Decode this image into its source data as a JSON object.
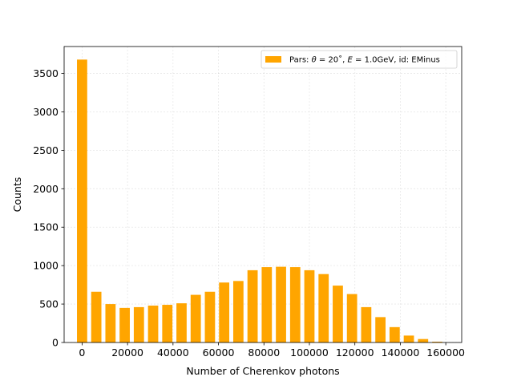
{
  "chart_data": {
    "type": "bar",
    "xlabel": "Number of Cherenkov photons",
    "ylabel": "Counts",
    "xlim": [
      -7900,
      167000
    ],
    "ylim": [
      0,
      3850
    ],
    "xticks": [
      0,
      20000,
      40000,
      60000,
      80000,
      100000,
      120000,
      140000,
      160000
    ],
    "xtick_labels": [
      "0",
      "20000",
      "40000",
      "60000",
      "80000",
      "100000",
      "120000",
      "140000",
      "160000"
    ],
    "yticks": [
      0,
      500,
      1000,
      1500,
      2000,
      2500,
      3000,
      3500
    ],
    "ytick_labels": [
      "0",
      "500",
      "1000",
      "1500",
      "2000",
      "2500",
      "3000",
      "3500"
    ],
    "grid": true,
    "legend_position": "top-right",
    "bin_width": 6250,
    "bar_width": 4500,
    "series": [
      {
        "name": "Pars: θ = 20˚, E = 1.0GeV, id: EMinus",
        "color": "#FFA500",
        "x": [
          0,
          6250,
          12500,
          18750,
          25000,
          31250,
          37500,
          43750,
          50000,
          56250,
          62500,
          68750,
          75000,
          81250,
          87500,
          93750,
          100000,
          106250,
          112500,
          118750,
          125000,
          131250,
          137500,
          143750,
          150000,
          156250
        ],
        "values": [
          3680,
          660,
          500,
          450,
          460,
          480,
          490,
          510,
          620,
          660,
          780,
          800,
          940,
          980,
          985,
          980,
          940,
          890,
          740,
          630,
          460,
          330,
          200,
          90,
          45,
          10
        ]
      }
    ]
  },
  "legend": {
    "prefix": "Pars: ",
    "theta_symbol": "θ",
    "theta_value": " = 20˚, ",
    "energy_symbol": "E",
    "energy_value": " = 1.0GeV, id: EMinus"
  }
}
